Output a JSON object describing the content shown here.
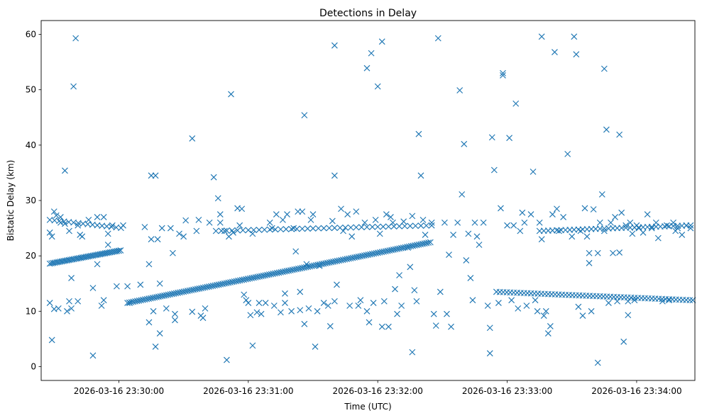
{
  "chart_data": {
    "type": "scatter",
    "title": "Detections in Delay",
    "xlabel": "Time (UTC)",
    "ylabel": "Bistatic Delay (km)",
    "marker": "x",
    "color": "#1f77b4",
    "x_unit": "seconds after 2026-03-16 23:29:00 UTC",
    "xlim": [
      24,
      327
    ],
    "ylim": [
      -2.5,
      62.5
    ],
    "x_ticks": [
      {
        "value": 60,
        "label": "2026-03-16 23:30:00"
      },
      {
        "value": 120,
        "label": "2026-03-16 23:31:00"
      },
      {
        "value": 180,
        "label": "2026-03-16 23:32:00"
      },
      {
        "value": 240,
        "label": "2026-03-16 23:33:00"
      },
      {
        "value": 300,
        "label": "2026-03-16 23:34:00"
      }
    ],
    "y_ticks": [
      0,
      10,
      20,
      30,
      40,
      50,
      60
    ],
    "tracks": [
      {
        "name": "rising-track-a",
        "x_start": 28,
        "x_end": 61,
        "y_start": 18.6,
        "y_end": 21.0,
        "step": 0.8
      },
      {
        "name": "rising-track-b",
        "x_start": 64,
        "x_end": 205,
        "y_start": 11.5,
        "y_end": 22.5,
        "step": 0.9
      },
      {
        "name": "upper-band-early",
        "x_start": 28,
        "x_end": 62,
        "y_start": 26.5,
        "y_end": 25.0,
        "step": 2.2
      },
      {
        "name": "upper-band-mid",
        "x_start": 105,
        "x_end": 205,
        "y_start": 24.5,
        "y_end": 25.5,
        "step": 2.5
      },
      {
        "name": "upper-band-late",
        "x_start": 255,
        "x_end": 325,
        "y_start": 24.5,
        "y_end": 25.5,
        "step": 2.0
      },
      {
        "name": "lower-band-late",
        "x_start": 235,
        "x_end": 325,
        "y_start": 13.5,
        "y_end": 12.0,
        "step": 1.6
      }
    ],
    "points": [
      [
        28,
        24.2
      ],
      [
        28,
        11.5
      ],
      [
        29,
        4.8
      ],
      [
        29,
        23.5
      ],
      [
        30,
        28.0
      ],
      [
        30,
        10.4
      ],
      [
        31,
        27.3
      ],
      [
        32,
        10.5
      ],
      [
        33,
        26.0
      ],
      [
        33,
        27.0
      ],
      [
        35,
        35.4
      ],
      [
        35,
        25.8
      ],
      [
        36,
        10.0
      ],
      [
        37,
        24.5
      ],
      [
        37,
        11.8
      ],
      [
        38,
        16.0
      ],
      [
        38,
        10.5
      ],
      [
        39,
        50.6
      ],
      [
        40,
        59.3
      ],
      [
        41,
        25.5
      ],
      [
        41,
        11.8
      ],
      [
        42,
        23.8
      ],
      [
        43,
        23.5
      ],
      [
        46,
        26.5
      ],
      [
        48,
        14.2
      ],
      [
        48,
        2.0
      ],
      [
        50,
        27.0
      ],
      [
        50,
        18.5
      ],
      [
        52,
        11.0
      ],
      [
        53,
        27.0
      ],
      [
        53,
        12.0
      ],
      [
        55,
        24.0
      ],
      [
        55,
        22.0
      ],
      [
        57,
        25.5
      ],
      [
        59,
        14.5
      ],
      [
        62,
        25.5
      ],
      [
        64,
        14.5
      ],
      [
        65,
        11.5
      ],
      [
        70,
        14.8
      ],
      [
        72,
        25.2
      ],
      [
        74,
        18.5
      ],
      [
        74,
        8.0
      ],
      [
        75,
        34.5
      ],
      [
        75,
        23.0
      ],
      [
        76,
        10.0
      ],
      [
        77,
        3.6
      ],
      [
        77,
        34.5
      ],
      [
        78,
        23.0
      ],
      [
        79,
        15.0
      ],
      [
        79,
        6.0
      ],
      [
        80,
        25.0
      ],
      [
        82,
        10.5
      ],
      [
        84,
        25.0
      ],
      [
        85,
        20.5
      ],
      [
        86,
        9.5
      ],
      [
        86,
        8.4
      ],
      [
        88,
        24.0
      ],
      [
        90,
        23.5
      ],
      [
        91,
        26.4
      ],
      [
        94,
        41.2
      ],
      [
        94,
        9.9
      ],
      [
        96,
        24.5
      ],
      [
        97,
        26.5
      ],
      [
        98,
        9.2
      ],
      [
        99,
        8.8
      ],
      [
        100,
        10.5
      ],
      [
        102,
        26.0
      ],
      [
        104,
        34.2
      ],
      [
        106,
        30.4
      ],
      [
        107,
        27.5
      ],
      [
        107,
        26.0
      ],
      [
        109,
        24.5
      ],
      [
        110,
        1.2
      ],
      [
        111,
        23.5
      ],
      [
        112,
        49.2
      ],
      [
        113,
        24.2
      ],
      [
        115,
        28.6
      ],
      [
        116,
        25.5
      ],
      [
        117,
        28.5
      ],
      [
        118,
        13.0
      ],
      [
        119,
        12.0
      ],
      [
        120,
        11.5
      ],
      [
        121,
        9.3
      ],
      [
        122,
        3.8
      ],
      [
        122,
        24.0
      ],
      [
        124,
        9.8
      ],
      [
        125,
        11.5
      ],
      [
        126,
        9.5
      ],
      [
        128,
        11.5
      ],
      [
        130,
        26.0
      ],
      [
        131,
        25.0
      ],
      [
        132,
        11.0
      ],
      [
        133,
        27.5
      ],
      [
        135,
        9.8
      ],
      [
        136,
        26.5
      ],
      [
        137,
        13.2
      ],
      [
        137,
        11.5
      ],
      [
        138,
        27.5
      ],
      [
        140,
        10.0
      ],
      [
        141,
        25.0
      ],
      [
        142,
        20.8
      ],
      [
        143,
        28.0
      ],
      [
        144,
        13.5
      ],
      [
        144,
        10.2
      ],
      [
        145,
        28.0
      ],
      [
        146,
        45.4
      ],
      [
        146,
        7.7
      ],
      [
        147,
        18.5
      ],
      [
        148,
        10.5
      ],
      [
        149,
        26.5
      ],
      [
        150,
        27.5
      ],
      [
        151,
        3.6
      ],
      [
        152,
        10.0
      ],
      [
        153,
        18.2
      ],
      [
        155,
        11.5
      ],
      [
        157,
        11.0
      ],
      [
        158,
        7.3
      ],
      [
        159,
        26.3
      ],
      [
        160,
        11.8
      ],
      [
        160,
        58.0
      ],
      [
        160,
        34.5
      ],
      [
        161,
        14.8
      ],
      [
        163,
        28.5
      ],
      [
        164,
        24.5
      ],
      [
        166,
        27.5
      ],
      [
        167,
        11.0
      ],
      [
        168,
        23.5
      ],
      [
        170,
        28.0
      ],
      [
        171,
        11.0
      ],
      [
        172,
        12.0
      ],
      [
        174,
        26.0
      ],
      [
        175,
        10.0
      ],
      [
        175,
        53.9
      ],
      [
        176,
        8.0
      ],
      [
        177,
        56.6
      ],
      [
        178,
        11.5
      ],
      [
        179,
        26.5
      ],
      [
        180,
        50.6
      ],
      [
        181,
        24.0
      ],
      [
        182,
        58.7
      ],
      [
        182,
        7.2
      ],
      [
        183,
        11.8
      ],
      [
        184,
        27.5
      ],
      [
        185,
        7.2
      ],
      [
        186,
        27.0
      ],
      [
        187,
        26.0
      ],
      [
        188,
        14.0
      ],
      [
        189,
        9.5
      ],
      [
        190,
        16.5
      ],
      [
        191,
        11.0
      ],
      [
        192,
        26.2
      ],
      [
        194,
        21.5
      ],
      [
        195,
        18.0
      ],
      [
        196,
        2.6
      ],
      [
        196,
        27.2
      ],
      [
        197,
        13.8
      ],
      [
        198,
        11.8
      ],
      [
        199,
        42.0
      ],
      [
        200,
        34.5
      ],
      [
        201,
        26.5
      ],
      [
        202,
        23.8
      ],
      [
        205,
        26.0
      ],
      [
        206,
        9.5
      ],
      [
        207,
        7.4
      ],
      [
        208,
        59.3
      ],
      [
        209,
        13.5
      ],
      [
        211,
        26.0
      ],
      [
        212,
        9.5
      ],
      [
        213,
        20.2
      ],
      [
        214,
        7.2
      ],
      [
        215,
        23.8
      ],
      [
        217,
        26.0
      ],
      [
        218,
        49.9
      ],
      [
        219,
        31.1
      ],
      [
        220,
        40.2
      ],
      [
        221,
        19.2
      ],
      [
        222,
        24.0
      ],
      [
        223,
        16.0
      ],
      [
        224,
        12.0
      ],
      [
        225,
        26.0
      ],
      [
        226,
        23.5
      ],
      [
        227,
        22.0
      ],
      [
        229,
        26.0
      ],
      [
        231,
        11.0
      ],
      [
        232,
        7.0
      ],
      [
        232,
        2.4
      ],
      [
        233,
        41.4
      ],
      [
        234,
        35.5
      ],
      [
        236,
        11.5
      ],
      [
        237,
        28.6
      ],
      [
        238,
        53.0
      ],
      [
        238,
        52.6
      ],
      [
        240,
        25.5
      ],
      [
        241,
        41.3
      ],
      [
        242,
        12.0
      ],
      [
        243,
        25.5
      ],
      [
        244,
        47.5
      ],
      [
        245,
        10.5
      ],
      [
        246,
        24.5
      ],
      [
        247,
        27.8
      ],
      [
        248,
        26.0
      ],
      [
        249,
        11.0
      ],
      [
        251,
        27.5
      ],
      [
        252,
        35.2
      ],
      [
        253,
        12.0
      ],
      [
        254,
        10.0
      ],
      [
        255,
        26.0
      ],
      [
        256,
        59.6
      ],
      [
        256,
        23.0
      ],
      [
        257,
        9.2
      ],
      [
        258,
        10.0
      ],
      [
        259,
        6.0
      ],
      [
        260,
        7.3
      ],
      [
        261,
        27.5
      ],
      [
        262,
        56.8
      ],
      [
        263,
        28.5
      ],
      [
        264,
        24.5
      ],
      [
        266,
        27.0
      ],
      [
        268,
        38.4
      ],
      [
        270,
        23.5
      ],
      [
        271,
        59.6
      ],
      [
        272,
        56.4
      ],
      [
        273,
        10.8
      ],
      [
        274,
        24.5
      ],
      [
        275,
        9.2
      ],
      [
        276,
        28.6
      ],
      [
        277,
        23.5
      ],
      [
        278,
        20.5
      ],
      [
        278,
        18.7
      ],
      [
        279,
        10.0
      ],
      [
        280,
        28.4
      ],
      [
        282,
        20.5
      ],
      [
        282,
        0.7
      ],
      [
        283,
        26.0
      ],
      [
        284,
        31.1
      ],
      [
        285,
        53.8
      ],
      [
        285,
        24.5
      ],
      [
        286,
        42.8
      ],
      [
        287,
        11.5
      ],
      [
        288,
        26.0
      ],
      [
        289,
        20.5
      ],
      [
        290,
        27.0
      ],
      [
        291,
        11.8
      ],
      [
        292,
        41.9
      ],
      [
        292,
        20.6
      ],
      [
        293,
        27.8
      ],
      [
        294,
        4.5
      ],
      [
        295,
        25.5
      ],
      [
        296,
        11.8
      ],
      [
        296,
        9.3
      ],
      [
        297,
        26.0
      ],
      [
        298,
        24.0
      ],
      [
        299,
        12.0
      ],
      [
        300,
        25.5
      ],
      [
        301,
        25.0
      ],
      [
        303,
        24.2
      ],
      [
        305,
        27.5
      ],
      [
        307,
        25.0
      ],
      [
        309,
        26.0
      ],
      [
        310,
        23.2
      ],
      [
        312,
        11.8
      ],
      [
        314,
        25.5
      ],
      [
        315,
        12.0
      ],
      [
        317,
        26.0
      ],
      [
        318,
        24.5
      ],
      [
        319,
        25.0
      ],
      [
        321,
        23.8
      ],
      [
        323,
        25.5
      ],
      [
        325,
        25.0
      ],
      [
        326,
        12.0
      ]
    ]
  }
}
